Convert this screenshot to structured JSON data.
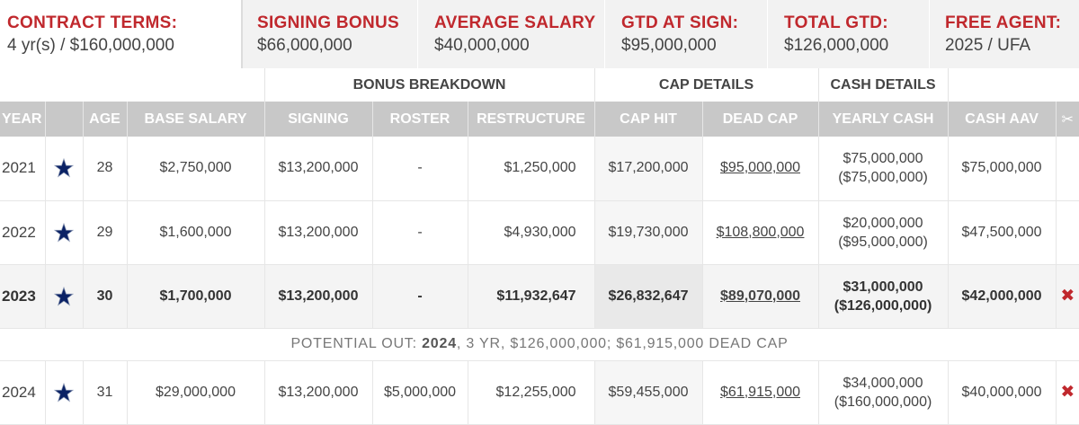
{
  "summary": [
    {
      "label": "CONTRACT TERMS:",
      "value": "4 yr(s) / $160,000,000"
    },
    {
      "label": "SIGNING BONUS",
      "value": "$66,000,000"
    },
    {
      "label": "AVERAGE SALARY",
      "value": "$40,000,000"
    },
    {
      "label": "GTD AT SIGN:",
      "value": "$95,000,000"
    },
    {
      "label": "TOTAL GTD:",
      "value": "$126,000,000"
    },
    {
      "label": "FREE AGENT:",
      "value": "2025 / UFA"
    }
  ],
  "groups": {
    "bonus": "BONUS BREAKDOWN",
    "cap": "CAP DETAILS",
    "cash": "CASH DETAILS"
  },
  "columns": {
    "year": "YEAR",
    "age": "AGE",
    "base": "BASE SALARY",
    "signing": "SIGNING",
    "roster": "ROSTER",
    "restructure": "RESTRUCTURE",
    "cap_hit": "CAP HIT",
    "dead_cap": "DEAD CAP",
    "yearly_cash": "YEARLY CASH",
    "cash_aav": "CASH AAV"
  },
  "rows": [
    {
      "year": "2021",
      "age": "28",
      "base": "$2,750,000",
      "signing": "$13,200,000",
      "roster": "-",
      "restructure": "$1,250,000",
      "cap_hit": "$17,200,000",
      "dead_cap": "$95,000,000",
      "cash": "$75,000,000",
      "cash_total": "($75,000,000)",
      "cash_aav": "$75,000,000"
    },
    {
      "year": "2022",
      "age": "29",
      "base": "$1,600,000",
      "signing": "$13,200,000",
      "roster": "-",
      "restructure": "$4,930,000",
      "cap_hit": "$19,730,000",
      "dead_cap": "$108,800,000",
      "cash": "$20,000,000",
      "cash_total": "($95,000,000)",
      "cash_aav": "$47,500,000"
    },
    {
      "year": "2023",
      "age": "30",
      "base": "$1,700,000",
      "signing": "$13,200,000",
      "roster": "-",
      "restructure": "$11,932,647",
      "cap_hit": "$26,832,647",
      "dead_cap": "$89,070,000",
      "cash": "$31,000,000",
      "cash_total": "($126,000,000)",
      "cash_aav": "$42,000,000",
      "cut": "✖"
    },
    {
      "year": "2024",
      "age": "31",
      "base": "$29,000,000",
      "signing": "$13,200,000",
      "roster": "$5,000,000",
      "restructure": "$12,255,000",
      "cap_hit": "$59,455,000",
      "dead_cap": "$61,915,000",
      "cash": "$34,000,000",
      "cash_total": "($160,000,000)",
      "cash_aav": "$40,000,000",
      "cut": "✖"
    }
  ],
  "potential_out": {
    "prefix": "POTENTIAL OUT:",
    "year": "2024",
    "rest": ", 3 YR, $126,000,000; $61,915,000 DEAD CAP"
  },
  "icons": {
    "team": "team-star-icon",
    "scissors": "scissors-icon",
    "cut": "release-x-icon"
  },
  "colors": {
    "accent": "#c0282d",
    "header_bg": "#c8c8c8",
    "team_star": "#0b2265"
  }
}
